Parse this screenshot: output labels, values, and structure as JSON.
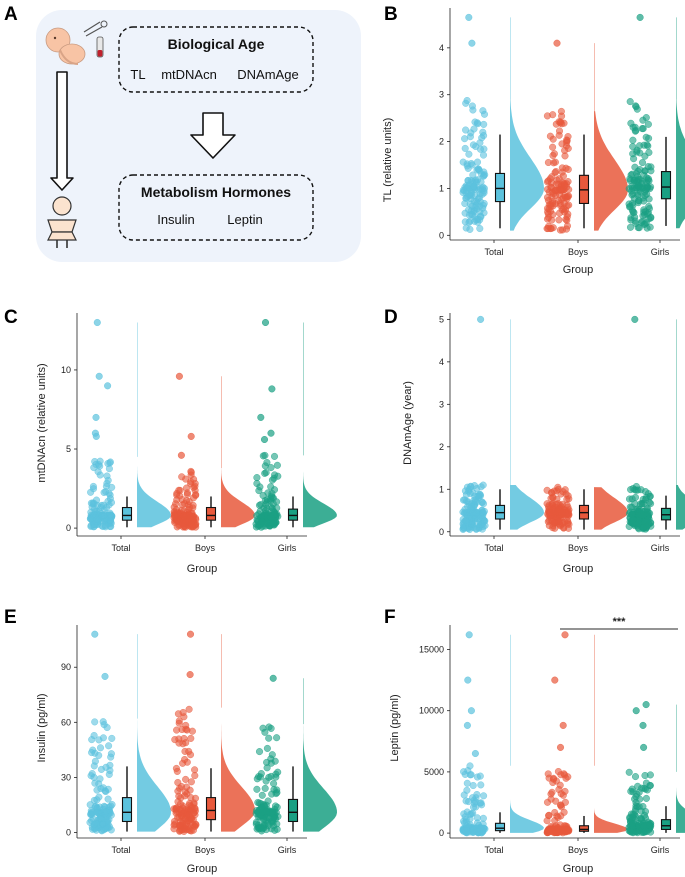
{
  "figure": {
    "panel_labels": [
      "A",
      "B",
      "C",
      "D",
      "E",
      "F"
    ],
    "schematic": {
      "box1_title": "Biological Age",
      "box1_items": [
        "TL",
        "mtDNAcn",
        "DNAmAge"
      ],
      "box2_title": "Metabolism Hormones",
      "box2_items": [
        "Insulin",
        "Leptin"
      ],
      "arrow_icon": "down-arrow-icon",
      "fetus_icon": "fetus-icon",
      "child_icon": "child-icon",
      "sampling_icon": "sampling-tube-icon"
    }
  },
  "colors": {
    "Total": "#5bc2dd",
    "Boys": "#e8593c",
    "Girls": "#1aa083",
    "schematic_bg": "#eef3fb"
  },
  "chart_data": [
    {
      "panel": "B",
      "type": "raincloud",
      "title": "",
      "xlabel": "Group",
      "ylabel": "TL (relative units)",
      "categories": [
        "Total",
        "Boys",
        "Girls"
      ],
      "ylim": [
        -0.1,
        4.85
      ],
      "yticks": [
        0,
        1,
        2,
        3,
        4
      ],
      "series": [
        {
          "name": "Total",
          "median": 1.0,
          "q1": 0.72,
          "q3": 1.32,
          "whisker_low": 0.15,
          "whisker_high": 2.15,
          "range": [
            0.1,
            2.9
          ],
          "outliers": [
            4.1,
            4.65
          ]
        },
        {
          "name": "Boys",
          "median": 0.97,
          "q1": 0.68,
          "q3": 1.28,
          "whisker_low": 0.15,
          "whisker_high": 2.15,
          "range": [
            0.1,
            2.65
          ],
          "outliers": [
            4.1
          ]
        },
        {
          "name": "Girls",
          "median": 1.03,
          "q1": 0.78,
          "q3": 1.36,
          "whisker_low": 0.2,
          "whisker_high": 2.1,
          "range": [
            0.15,
            2.9
          ],
          "outliers": [
            4.65
          ]
        }
      ]
    },
    {
      "panel": "C",
      "type": "raincloud",
      "title": "",
      "xlabel": "Group",
      "ylabel": "mtDNAcn (relative units)",
      "categories": [
        "Total",
        "Boys",
        "Girls"
      ],
      "ylim": [
        -0.5,
        13.6
      ],
      "yticks": [
        0,
        5,
        10
      ],
      "series": [
        {
          "name": "Total",
          "median": 0.8,
          "q1": 0.5,
          "q3": 1.3,
          "whisker_low": 0.05,
          "whisker_high": 2.0,
          "range": [
            0.05,
            4.5
          ],
          "outliers": [
            5.8,
            6.0,
            7.0,
            9.0,
            9.6,
            13.0
          ]
        },
        {
          "name": "Boys",
          "median": 0.8,
          "q1": 0.5,
          "q3": 1.3,
          "whisker_low": 0.05,
          "whisker_high": 2.0,
          "range": [
            0.05,
            3.8
          ],
          "outliers": [
            4.6,
            5.8,
            9.6
          ]
        },
        {
          "name": "Girls",
          "median": 0.8,
          "q1": 0.5,
          "q3": 1.2,
          "whisker_low": 0.05,
          "whisker_high": 2.0,
          "range": [
            0.05,
            4.6
          ],
          "outliers": [
            5.6,
            6.0,
            7.0,
            8.8,
            13.0
          ]
        }
      ]
    },
    {
      "panel": "D",
      "type": "raincloud",
      "title": "",
      "xlabel": "Group",
      "ylabel": "DNAmAge (year)",
      "categories": [
        "Total",
        "Boys",
        "Girls"
      ],
      "ylim": [
        -0.1,
        5.15
      ],
      "yticks": [
        0,
        1,
        2,
        3,
        4,
        5
      ],
      "series": [
        {
          "name": "Total",
          "median": 0.45,
          "q1": 0.3,
          "q3": 0.62,
          "whisker_low": 0.05,
          "whisker_high": 1.0,
          "range": [
            0.05,
            1.1
          ],
          "outliers": [
            5.0
          ]
        },
        {
          "name": "Boys",
          "median": 0.45,
          "q1": 0.3,
          "q3": 0.62,
          "whisker_low": 0.05,
          "whisker_high": 1.0,
          "range": [
            0.05,
            1.05
          ],
          "outliers": []
        },
        {
          "name": "Girls",
          "median": 0.4,
          "q1": 0.28,
          "q3": 0.55,
          "whisker_low": 0.05,
          "whisker_high": 0.85,
          "range": [
            0.05,
            1.1
          ],
          "outliers": [
            5.0
          ]
        }
      ]
    },
    {
      "panel": "E",
      "type": "raincloud",
      "title": "",
      "xlabel": "Group",
      "ylabel": "Insulin (pg/ml)",
      "categories": [
        "Total",
        "Boys",
        "Girls"
      ],
      "ylim": [
        -3,
        113
      ],
      "yticks": [
        0,
        30,
        60,
        90
      ],
      "series": [
        {
          "name": "Total",
          "median": 11,
          "q1": 6,
          "q3": 19,
          "whisker_low": 0.5,
          "whisker_high": 36,
          "range": [
            0.5,
            62
          ],
          "outliers": [
            85,
            108
          ]
        },
        {
          "name": "Boys",
          "median": 12,
          "q1": 7,
          "q3": 19,
          "whisker_low": 0.5,
          "whisker_high": 35,
          "range": [
            0.5,
            68
          ],
          "outliers": [
            86,
            108
          ]
        },
        {
          "name": "Girls",
          "median": 11,
          "q1": 6,
          "q3": 18,
          "whisker_low": 0.5,
          "whisker_high": 36,
          "range": [
            0.5,
            59
          ],
          "outliers": [
            84
          ]
        }
      ]
    },
    {
      "panel": "F",
      "type": "raincloud",
      "title": "",
      "xlabel": "Group",
      "ylabel": "Leptin (pg/ml)",
      "categories": [
        "Total",
        "Boys",
        "Girls"
      ],
      "ylim": [
        -400,
        17000
      ],
      "yticks": [
        0,
        5000,
        10000,
        15000
      ],
      "significance": {
        "label": "***",
        "from": "Boys",
        "to": "Girls"
      },
      "series": [
        {
          "name": "Total",
          "median": 400,
          "q1": 200,
          "q3": 800,
          "whisker_low": 20,
          "whisker_high": 1700,
          "range": [
            20,
            5500
          ],
          "outliers": [
            6500,
            8800,
            10000,
            12500,
            16200
          ]
        },
        {
          "name": "Boys",
          "median": 300,
          "q1": 150,
          "q3": 600,
          "whisker_low": 20,
          "whisker_high": 1400,
          "range": [
            20,
            5500
          ],
          "outliers": [
            7000,
            8800,
            12500,
            16200
          ]
        },
        {
          "name": "Girls",
          "median": 600,
          "q1": 300,
          "q3": 1100,
          "whisker_low": 20,
          "whisker_high": 2200,
          "range": [
            20,
            5000
          ],
          "outliers": [
            7000,
            8800,
            10000,
            10500
          ]
        }
      ]
    }
  ]
}
